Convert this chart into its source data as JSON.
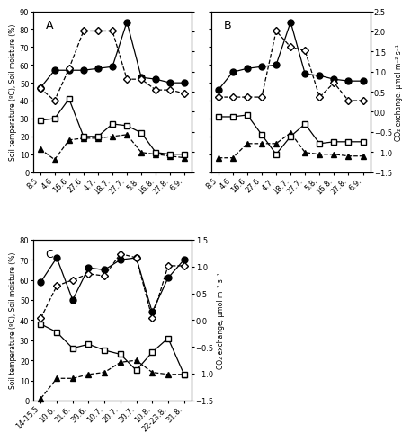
{
  "A": {
    "label": "A",
    "xtick_labels": [
      "8.5",
      "4.6",
      "16.6",
      "27.6",
      "4.7.",
      "18.7.",
      "27.7.",
      "5.8.",
      "16.8.",
      "27.8.",
      "6.9."
    ],
    "soil_temp": [
      13,
      7,
      18,
      19,
      19,
      20,
      21,
      11,
      10,
      9,
      8
    ],
    "soil_moisture": [
      47,
      57,
      57,
      57,
      58,
      59,
      84,
      53,
      52,
      50,
      50
    ],
    "nee": [
      29,
      30,
      41,
      20,
      20,
      27,
      26,
      22,
      11,
      10,
      10
    ],
    "respiration": [
      47,
      40,
      58,
      79,
      79,
      79,
      52,
      52,
      46,
      46,
      44
    ],
    "ylim_left": [
      0,
      90
    ],
    "ylim_right": [
      -1.5,
      2.5
    ],
    "yticks_left": [
      0,
      10,
      20,
      30,
      40,
      50,
      60,
      70,
      80,
      90
    ],
    "yticks_right": [
      -1.5,
      -1.0,
      -0.5,
      0.0,
      0.5,
      1.0,
      1.5,
      2.0,
      2.5
    ]
  },
  "B": {
    "label": "B",
    "xtick_labels": [
      "8.5",
      "4.6",
      "16.6",
      "27.6",
      "4.7.",
      "18.7.",
      "27.7.",
      "5.8.",
      "16.8.",
      "27.8.",
      "6.9."
    ],
    "soil_temp": [
      8,
      8,
      16,
      16,
      16,
      22,
      11,
      10,
      10,
      9,
      9
    ],
    "soil_moisture": [
      46,
      56,
      58,
      59,
      60,
      84,
      55,
      54,
      52,
      51,
      51
    ],
    "nee": [
      31,
      31,
      32,
      21,
      10,
      20,
      27,
      16,
      17,
      17,
      17
    ],
    "respiration": [
      42,
      42,
      42,
      42,
      79,
      70,
      68,
      42,
      50,
      40,
      40
    ],
    "ylim_left": [
      0,
      90
    ],
    "ylim_right": [
      -1.5,
      2.5
    ],
    "yticks_left": [
      0,
      10,
      20,
      30,
      40,
      50,
      60,
      70,
      80,
      90
    ],
    "yticks_right": [
      -1.5,
      -1.0,
      -0.5,
      0.0,
      0.5,
      1.0,
      1.5,
      2.0,
      2.5
    ]
  },
  "C": {
    "label": "C",
    "xtick_labels": [
      "14-15.5",
      "10.6.",
      "21.6.",
      "30.6.",
      "10.7.",
      "20.7.",
      "30.7.",
      "10.8.",
      "22-23.8.",
      "31.8."
    ],
    "soil_temp": [
      1,
      11,
      11,
      13,
      14,
      19,
      20,
      14,
      13,
      13
    ],
    "soil_moisture": [
      59,
      71,
      50,
      66,
      65,
      70,
      71,
      44,
      61,
      70
    ],
    "nee": [
      38,
      34,
      26,
      28,
      25,
      23,
      15,
      24,
      31,
      13
    ],
    "respiration": [
      41,
      57,
      60,
      63,
      62,
      73,
      71,
      41,
      67,
      67
    ],
    "ylim_left": [
      0,
      80
    ],
    "ylim_right": [
      -1.5,
      1.5
    ],
    "yticks_left": [
      0,
      10,
      20,
      30,
      40,
      50,
      60,
      70,
      80
    ],
    "yticks_right": [
      -1.5,
      -1.0,
      -0.5,
      0.0,
      0.5,
      1.0,
      1.5
    ]
  },
  "ylabel_left": "Soil temperature (ºC), Soil moisture (%)",
  "ylabel_right": "CO₂ exchange, µmol m⁻² s⁻¹",
  "background": "#ffffff"
}
